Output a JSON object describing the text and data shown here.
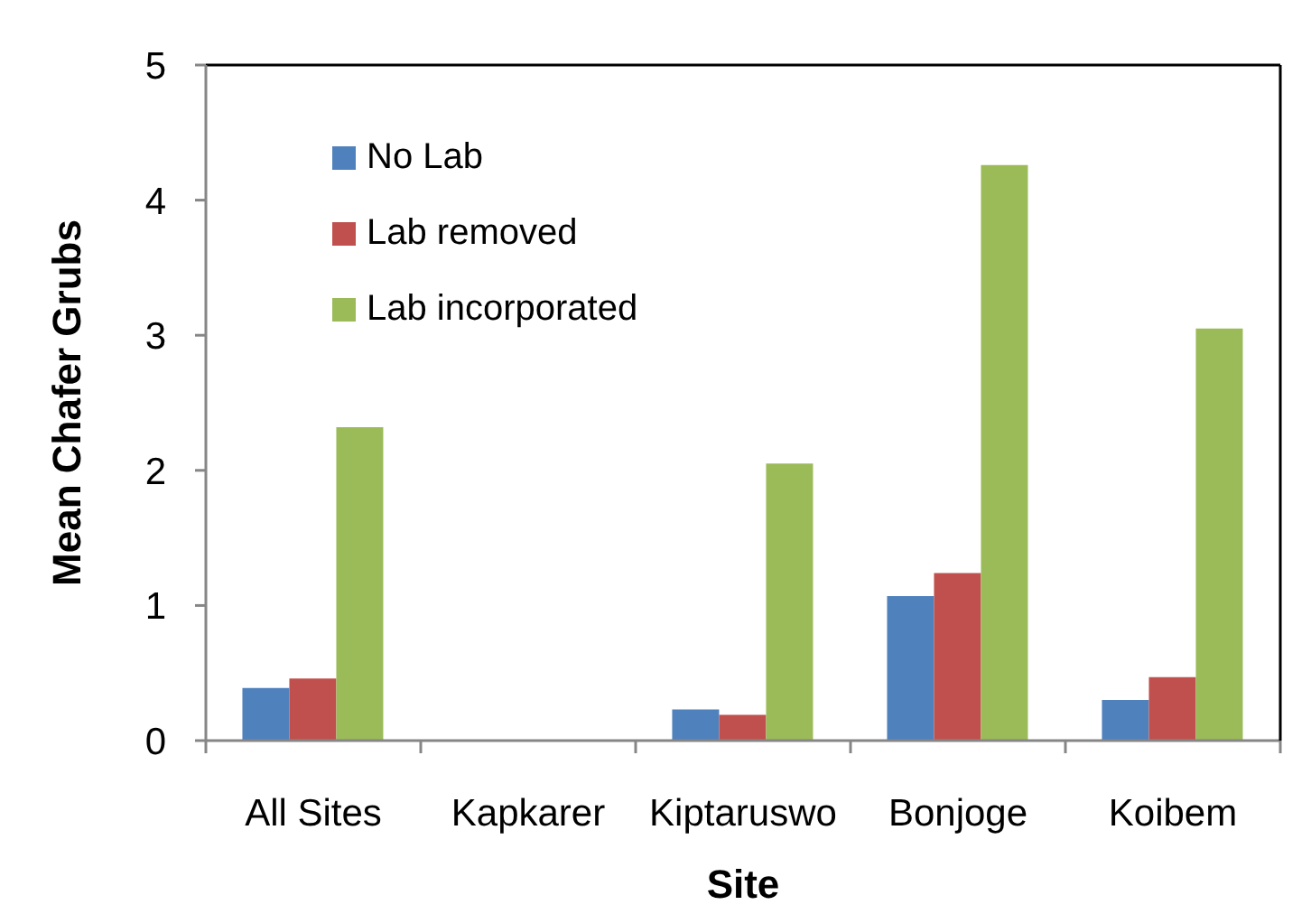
{
  "chart_data": {
    "type": "bar",
    "xlabel": "Site",
    "ylabel": "Mean Chafer Grubs",
    "categories": [
      "All Sites",
      "Kapkarer",
      "Kiptaruswo",
      "Bonjoge",
      "Koibem"
    ],
    "series": [
      {
        "name": "No Lab",
        "color": "#4f81bd",
        "values": [
          0.39,
          0,
          0.23,
          1.07,
          0.3
        ]
      },
      {
        "name": "Lab removed",
        "color": "#c0504d",
        "values": [
          0.46,
          0,
          0.19,
          1.24,
          0.47
        ]
      },
      {
        "name": "Lab incorporated",
        "color": "#9bbb59",
        "values": [
          2.32,
          0,
          2.05,
          4.26,
          3.05
        ]
      }
    ],
    "ylim": [
      0,
      5
    ],
    "yticks": [
      0,
      1,
      2,
      3,
      4,
      5
    ],
    "legend": "top left"
  }
}
